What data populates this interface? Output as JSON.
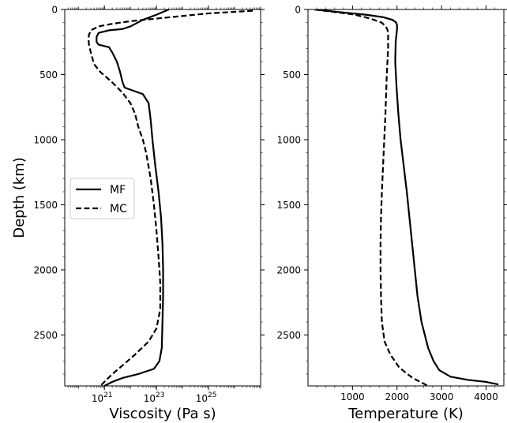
{
  "chart_data": [
    {
      "type": "line",
      "xlabel": "Viscosity (Pa s)",
      "ylabel": "Depth (km)",
      "xscale": "log",
      "xlim": [
        3e+19,
        1e+27
      ],
      "ylim": [
        2891,
        0
      ],
      "yticks": [
        0,
        500,
        1000,
        1500,
        2000,
        2500
      ],
      "ytick_labels": [
        "0",
        "500",
        "1000",
        "1500",
        "2000",
        "2500"
      ],
      "xticks": [
        1e+21,
        1e+23,
        1e+25
      ],
      "xtick_labels": [
        {
          "base": "10",
          "exp": "21"
        },
        {
          "base": "10",
          "exp": "23"
        },
        {
          "base": "10",
          "exp": "25"
        }
      ],
      "grid": false,
      "legend": "center-left",
      "series": [
        {
          "name": "MF",
          "style": "solid",
          "color": "#000000",
          "points": [
            [
              3e+23,
              0
            ],
            [
              1e+23,
              40
            ],
            [
              3e+22,
              80
            ],
            [
              1e+22,
              130
            ],
            [
              5e+21,
              150
            ],
            [
              1.5e+21,
              160
            ],
            [
              6e+20,
              180
            ],
            [
              5e+20,
              210
            ],
            [
              5e+20,
              250
            ],
            [
              6e+20,
              270
            ],
            [
              1.5e+21,
              290
            ],
            [
              2e+21,
              330
            ],
            [
              3e+21,
              400
            ],
            [
              4e+21,
              480
            ],
            [
              5e+21,
              560
            ],
            [
              6e+21,
              600
            ],
            [
              3e+22,
              650
            ],
            [
              5e+22,
              720
            ],
            [
              6e+22,
              850
            ],
            [
              7e+22,
              1000
            ],
            [
              9e+22,
              1200
            ],
            [
              1.2e+23,
              1400
            ],
            [
              1.5e+23,
              1600
            ],
            [
              1.7e+23,
              1800
            ],
            [
              1.8e+23,
              2000
            ],
            [
              1.8e+23,
              2200
            ],
            [
              1.7e+23,
              2400
            ],
            [
              1.6e+23,
              2600
            ],
            [
              1.3e+23,
              2700
            ],
            [
              8e+22,
              2760
            ],
            [
              2e+22,
              2800
            ],
            [
              5e+21,
              2830
            ],
            [
              2e+21,
              2860
            ],
            [
              1e+21,
              2891
            ]
          ]
        },
        {
          "name": "MC",
          "style": "dashed",
          "color": "#000000",
          "points": [
            [
              5e+26,
              10
            ],
            [
              1e+25,
              30
            ],
            [
              1e+24,
              50
            ],
            [
              1e+23,
              70
            ],
            [
              1e+22,
              90
            ],
            [
              2e+21,
              110
            ],
            [
              6e+20,
              130
            ],
            [
              3e+20,
              160
            ],
            [
              2.5e+20,
              200
            ],
            [
              2.5e+20,
              260
            ],
            [
              3e+20,
              330
            ],
            [
              4e+20,
              420
            ],
            [
              7e+20,
              480
            ],
            [
              2e+21,
              560
            ],
            [
              5e+21,
              640
            ],
            [
              1e+22,
              720
            ],
            [
              1.5e+22,
              800
            ],
            [
              2e+22,
              900
            ],
            [
              3e+22,
              1000
            ],
            [
              4e+22,
              1100
            ],
            [
              6e+22,
              1300
            ],
            [
              8e+22,
              1500
            ],
            [
              1e+23,
              1700
            ],
            [
              1.2e+23,
              1900
            ],
            [
              1.4e+23,
              2100
            ],
            [
              1.4e+23,
              2300
            ],
            [
              1e+23,
              2450
            ],
            [
              5e+22,
              2550
            ],
            [
              1.5e+22,
              2650
            ],
            [
              6e+21,
              2720
            ],
            [
              2e+21,
              2800
            ],
            [
              7e+20,
              2891
            ]
          ]
        }
      ]
    },
    {
      "type": "line",
      "xlabel": "Temperature (K)",
      "ylabel": "",
      "xlim": [
        0,
        4400
      ],
      "ylim": [
        2891,
        0
      ],
      "yticks": [
        0,
        500,
        1000,
        1500,
        2000,
        2500
      ],
      "ytick_labels": [
        "0",
        "500",
        "1000",
        "1500",
        "2000",
        "2500"
      ],
      "xticks": [
        1000,
        2000,
        3000,
        4000
      ],
      "xtick_labels": [
        "1000",
        "2000",
        "3000",
        "4000"
      ],
      "grid": false,
      "series": [
        {
          "name": "MF",
          "style": "solid",
          "color": "#000000",
          "points": [
            [
              150,
              0
            ],
            [
              700,
              20
            ],
            [
              1300,
              40
            ],
            [
              1700,
              60
            ],
            [
              1900,
              80
            ],
            [
              1980,
              100
            ],
            [
              2000,
              120
            ],
            [
              2000,
              150
            ],
            [
              1970,
              250
            ],
            [
              1960,
              400
            ],
            [
              1990,
              600
            ],
            [
              2030,
              800
            ],
            [
              2080,
              1000
            ],
            [
              2150,
              1200
            ],
            [
              2220,
              1400
            ],
            [
              2280,
              1600
            ],
            [
              2340,
              1800
            ],
            [
              2400,
              2000
            ],
            [
              2460,
              2200
            ],
            [
              2550,
              2400
            ],
            [
              2700,
              2600
            ],
            [
              2820,
              2700
            ],
            [
              2950,
              2770
            ],
            [
              3200,
              2820
            ],
            [
              3600,
              2845
            ],
            [
              4000,
              2860
            ],
            [
              4280,
              2880
            ]
          ]
        },
        {
          "name": "MC",
          "style": "dashed",
          "color": "#000000",
          "points": [
            [
              150,
              0
            ],
            [
              600,
              20
            ],
            [
              1050,
              40
            ],
            [
              1400,
              70
            ],
            [
              1650,
              100
            ],
            [
              1750,
              130
            ],
            [
              1790,
              160
            ],
            [
              1800,
              200
            ],
            [
              1800,
              300
            ],
            [
              1770,
              500
            ],
            [
              1740,
              800
            ],
            [
              1700,
              1100
            ],
            [
              1660,
              1400
            ],
            [
              1640,
              1600
            ],
            [
              1630,
              1800
            ],
            [
              1630,
              2000
            ],
            [
              1640,
              2200
            ],
            [
              1660,
              2400
            ],
            [
              1720,
              2550
            ],
            [
              1850,
              2650
            ],
            [
              2050,
              2750
            ],
            [
              2350,
              2830
            ],
            [
              2700,
              2891
            ]
          ]
        }
      ]
    }
  ]
}
